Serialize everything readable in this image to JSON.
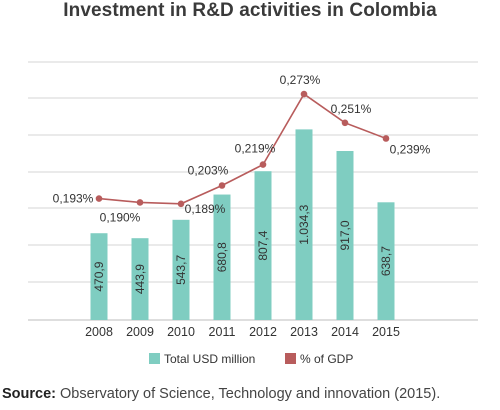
{
  "title": "Investment in R&D activities in Colombia",
  "source": {
    "label": "Source:",
    "text": "Observatory of Science, Technology and innovation (2015)."
  },
  "chart_data": {
    "type": "bar+line",
    "categories": [
      "2008",
      "2009",
      "2010",
      "2011",
      "2012",
      "2013",
      "2014",
      "2015"
    ],
    "series": [
      {
        "name": "Total USD million",
        "type": "bar",
        "color": "#7fcdc1",
        "values": [
          470.9,
          443.9,
          543.7,
          680.8,
          807.4,
          1034.3,
          917.0,
          638.7
        ],
        "labels": [
          "470,9",
          "443,9",
          "543,7",
          "680,8",
          "807,4",
          "1.034,3",
          "917,0",
          "638,7"
        ]
      },
      {
        "name": "% of GDP",
        "type": "line",
        "color": "#b85c5c",
        "values": [
          0.193,
          0.19,
          0.189,
          0.203,
          0.219,
          0.273,
          0.251,
          0.239
        ],
        "labels": [
          "0,193%",
          "0,190%",
          "0,189%",
          "0,203%",
          "0,219%",
          "0,273%",
          "0,251%",
          "0,239%"
        ]
      }
    ],
    "bar_ylim": [
      0,
      1400
    ],
    "line_ylim": [
      0.1,
      0.27
    ],
    "grid": true,
    "legend_position": "bottom"
  }
}
